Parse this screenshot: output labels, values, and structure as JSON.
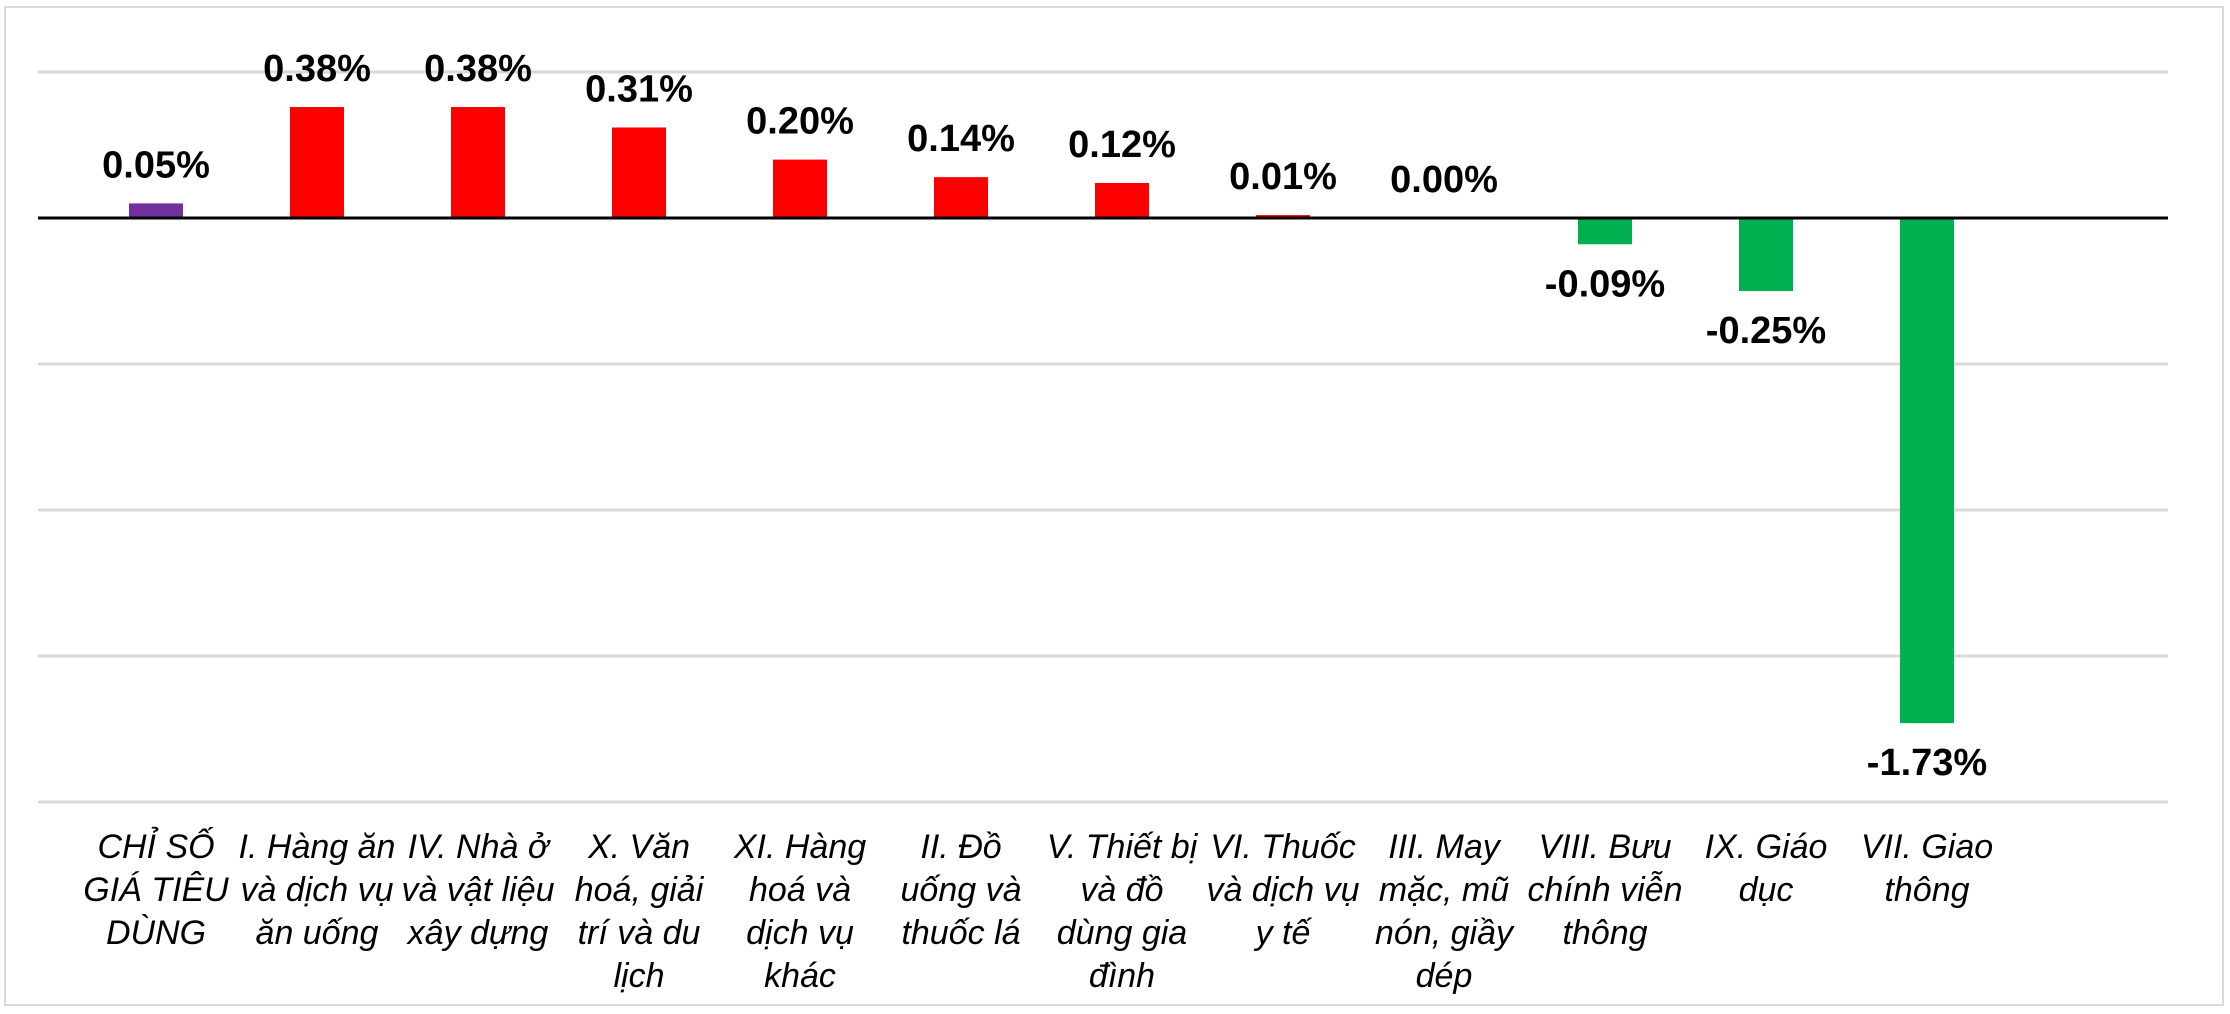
{
  "chart_data": {
    "type": "bar",
    "title": "",
    "xlabel": "",
    "ylabel": "",
    "ylim": [
      -2.0,
      0.5
    ],
    "gridlines": [
      0.5,
      -0.5,
      -1.0,
      -1.5,
      -2.0
    ],
    "grid": true,
    "legend": "none",
    "categories": [
      "CHỈ SỐ GIÁ TIÊU DÙNG",
      "I. Hàng ăn và dịch vụ ăn uống",
      "IV. Nhà ở và vật liệu xây dựng",
      "X. Văn hoá, giải trí và du lịch",
      "XI. Hàng hoá và dịch vụ khác",
      "II. Đồ uống và thuốc lá",
      "V. Thiết bị và đồ dùng gia đình",
      "VI. Thuốc và dịch vụ y tế",
      "III. May mặc, mũ nón, giầy dép",
      "VIII. Bưu chính viễn thông",
      "IX. Giáo dục",
      "VII. Giao thông"
    ],
    "values": [
      0.05,
      0.38,
      0.38,
      0.31,
      0.2,
      0.14,
      0.12,
      0.01,
      0.0,
      -0.09,
      -0.25,
      -1.73
    ],
    "data_labels": [
      "0.05%",
      "0.38%",
      "0.38%",
      "0.31%",
      "0.20%",
      "0.14%",
      "0.12%",
      "0.01%",
      "0.00%",
      "-0.09%",
      "-0.25%",
      "-1.73%"
    ],
    "colors": {
      "overall": "#7030a0",
      "increase": "#ff0000",
      "decrease": "#00b050",
      "gridline": "#d9d9d9",
      "axis": "#000000"
    }
  }
}
